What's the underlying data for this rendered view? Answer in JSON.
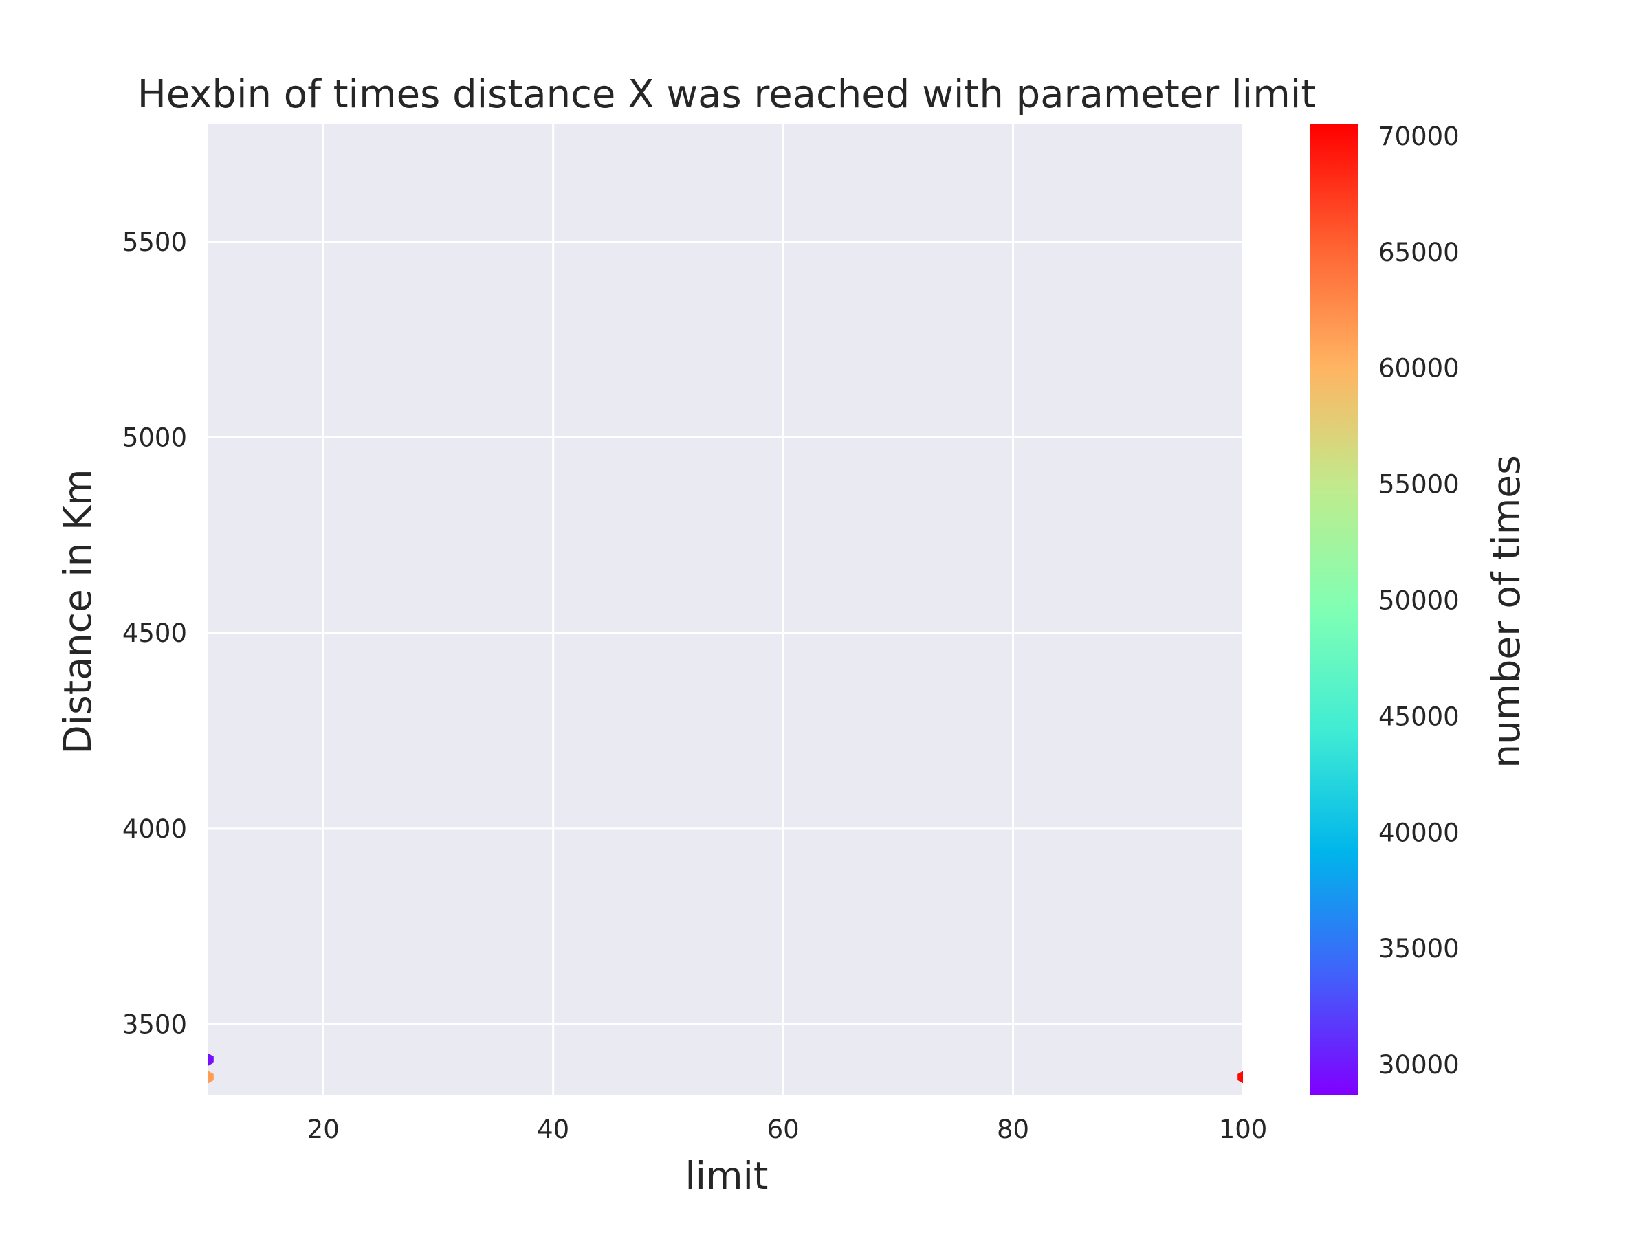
{
  "chart_data": {
    "type": "heatmap",
    "subtype": "hexbin",
    "title": "Hexbin of times distance X was reached with parameter limit",
    "xlabel": "limit",
    "ylabel": "Distance in Km",
    "xlim": [
      10,
      100
    ],
    "ylim": [
      3320,
      5800
    ],
    "x_ticks": [
      20,
      40,
      60,
      80,
      100
    ],
    "y_ticks": [
      3500,
      4000,
      4500,
      5000,
      5500
    ],
    "grid": true,
    "colormap": "rainbow",
    "colorbar": {
      "label": "number of times",
      "range": [
        28700,
        70500
      ],
      "ticks": [
        30000,
        35000,
        40000,
        45000,
        50000,
        55000,
        60000,
        65000,
        70000
      ],
      "colors": [
        "#8000ff",
        "#4062fa",
        "#00b5eb",
        "#40ecd4",
        "#80ffb4",
        "#c0eb8d",
        "#ffb462",
        "#ff6232",
        "#ff0000"
      ]
    },
    "bins": [
      {
        "x": 10,
        "y": 3410,
        "count": 29500
      },
      {
        "x": 10,
        "y": 3365,
        "count": 61500
      },
      {
        "x": 100,
        "y": 3365,
        "count": 70000
      }
    ],
    "background_color": "#eaeaf2",
    "grid_color": "#ffffff"
  }
}
